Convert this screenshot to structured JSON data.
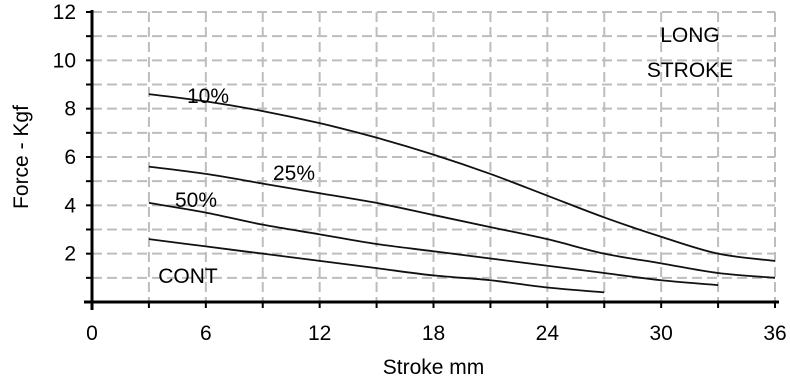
{
  "chart_data": {
    "type": "line",
    "title": "",
    "xlabel": "Stroke mm",
    "ylabel": "Force - Kgf",
    "xlim": [
      0,
      36
    ],
    "ylim": [
      0,
      12
    ],
    "xticks": [
      0,
      6,
      12,
      18,
      24,
      30,
      36
    ],
    "yticks": [
      2,
      4,
      6,
      8,
      10,
      12
    ],
    "grid": true,
    "annotation": [
      "LONG",
      "STROKE"
    ],
    "series": [
      {
        "name": "10%",
        "x": [
          3,
          6,
          9,
          12,
          15,
          18,
          21,
          24,
          27,
          30,
          33,
          36
        ],
        "y": [
          8.6,
          8.3,
          7.9,
          7.4,
          6.8,
          6.1,
          5.3,
          4.4,
          3.5,
          2.7,
          2.0,
          1.7
        ]
      },
      {
        "name": "25%",
        "x": [
          3,
          6,
          9,
          12,
          15,
          18,
          21,
          24,
          27,
          30,
          33,
          36
        ],
        "y": [
          5.6,
          5.3,
          4.9,
          4.5,
          4.1,
          3.6,
          3.1,
          2.6,
          2.0,
          1.6,
          1.2,
          1.0
        ]
      },
      {
        "name": "50%",
        "x": [
          3,
          6,
          9,
          12,
          15,
          18,
          21,
          24,
          27,
          30,
          33
        ],
        "y": [
          4.1,
          3.7,
          3.2,
          2.8,
          2.4,
          2.1,
          1.8,
          1.5,
          1.2,
          0.9,
          0.7
        ]
      },
      {
        "name": "CONT",
        "x": [
          3,
          6,
          9,
          12,
          15,
          18,
          21,
          24,
          27
        ],
        "y": [
          2.6,
          2.3,
          2.0,
          1.7,
          1.4,
          1.1,
          0.9,
          0.6,
          0.4
        ]
      }
    ]
  }
}
